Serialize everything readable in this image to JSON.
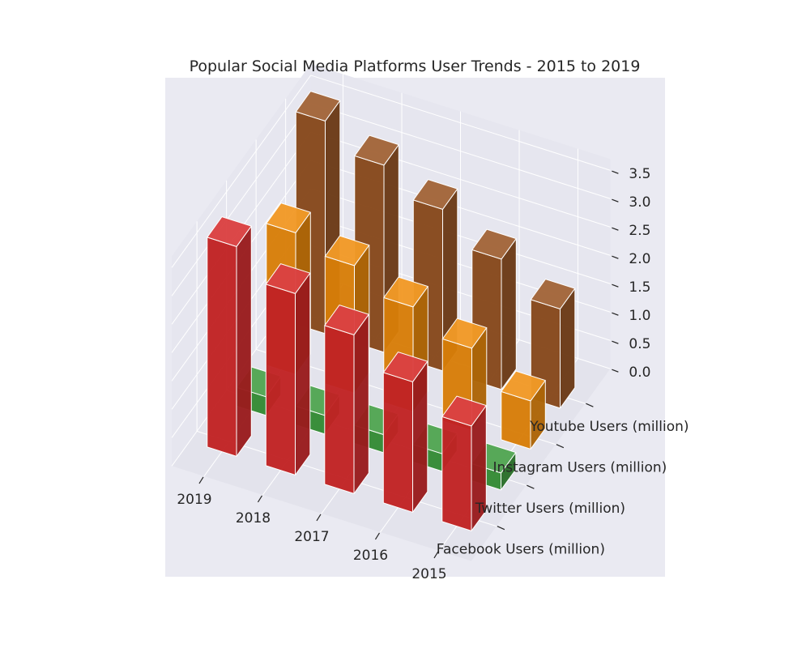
{
  "chart_data": {
    "type": "bar",
    "projection": "3d",
    "title": "Popular Social Media Platforms User Trends - 2015 to 2019",
    "xlabel": "",
    "ylabel": "",
    "zlabel": "",
    "categories": [
      "2019",
      "2018",
      "2017",
      "2016",
      "2015"
    ],
    "zlim": [
      0,
      3.5
    ],
    "z_ticks": [
      "0.0",
      "0.5",
      "1.0",
      "1.5",
      "2.0",
      "2.5",
      "3.0",
      "3.5"
    ],
    "grid": true,
    "series": [
      {
        "name": "Facebook Users (million)",
        "color": "#d62728",
        "values": [
          3.7,
          3.2,
          2.8,
          2.3,
          1.85
        ]
      },
      {
        "name": "Twitter Users (million)",
        "color": "#3a9a3a",
        "values": [
          0.33,
          0.33,
          0.32,
          0.31,
          0.3
        ]
      },
      {
        "name": "Instagram Users (million)",
        "color": "#f08c0a",
        "values": [
          2.5,
          2.25,
          1.85,
          1.45,
          0.85
        ]
      },
      {
        "name": "Youtube Users (million)",
        "color": "#96501e",
        "values": [
          3.75,
          3.3,
          2.85,
          2.3,
          1.75
        ]
      }
    ]
  }
}
